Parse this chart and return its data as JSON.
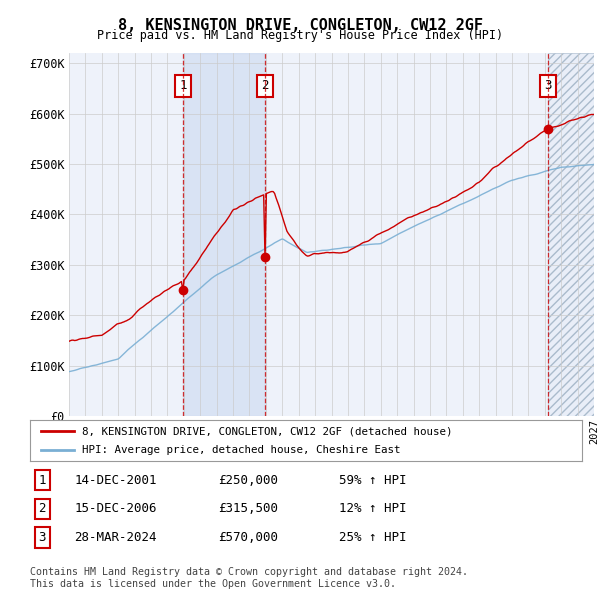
{
  "title": "8, KENSINGTON DRIVE, CONGLETON, CW12 2GF",
  "subtitle": "Price paid vs. HM Land Registry's House Price Index (HPI)",
  "ylim": [
    0,
    720000
  ],
  "yticks": [
    0,
    100000,
    200000,
    300000,
    400000,
    500000,
    600000,
    700000
  ],
  "ytick_labels": [
    "£0",
    "£100K",
    "£200K",
    "£300K",
    "£400K",
    "£500K",
    "£600K",
    "£700K"
  ],
  "background_color": "#ffffff",
  "plot_bg_color": "#eef2fa",
  "grid_color": "#cccccc",
  "legend_line1": "8, KENSINGTON DRIVE, CONGLETON, CW12 2GF (detached house)",
  "legend_line2": "HPI: Average price, detached house, Cheshire East",
  "hpi_color": "#7aafd4",
  "price_color": "#cc0000",
  "sale1_date": "14-DEC-2001",
  "sale1_price": "£250,000",
  "sale1_hpi": "59% ↑ HPI",
  "sale2_date": "15-DEC-2006",
  "sale2_price": "£315,500",
  "sale2_hpi": "12% ↑ HPI",
  "sale3_date": "28-MAR-2024",
  "sale3_price": "£570,000",
  "sale3_hpi": "25% ↑ HPI",
  "footer": "Contains HM Land Registry data © Crown copyright and database right 2024.\nThis data is licensed under the Open Government Licence v3.0.",
  "xstart": 1995,
  "xend": 2027
}
